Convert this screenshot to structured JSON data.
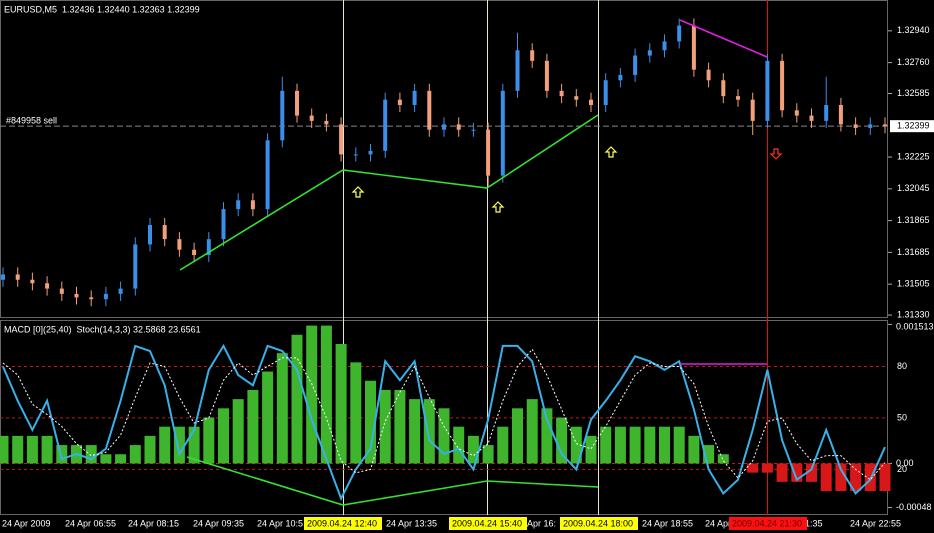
{
  "window": {
    "symbol_line": "EURUSD,M5  1.32436 1.32440 1.32363 1.32399",
    "order_label": "#849958 sell",
    "current_price": "1.32399",
    "indicator_line": "MACD [0](25,40)  Stoch(14,3,3) 32.5868 23.6561",
    "time_labels": [
      "24 Apr 2009",
      "24 Apr 06:55",
      "24 Apr 08:15",
      "24 Apr 09:35",
      "24 Apr 10:5",
      "24 Apr 13:35",
      "Apr 16:",
      "24 Apr 18:55",
      "24 Apr 2",
      "1:35",
      "24 Apr 22:55"
    ],
    "cursor_labels": [
      "2009.04.24 12:40",
      "2009.04.24 15:40",
      "2009.04.24 18:00",
      "2009.04.24 21:30"
    ]
  },
  "chart_data": [
    {
      "type": "candlestick",
      "up_color": "#3b8fe8",
      "down_color": "#f2a07b",
      "open": [
        1.3153,
        1.3156,
        1.3153,
        1.3151,
        1.3148,
        1.3145,
        1.3143,
        1.3142,
        1.3145,
        1.3148,
        1.3173,
        1.3184,
        1.3176,
        1.317,
        1.3167,
        1.3176,
        1.3193,
        1.3198,
        1.3193,
        1.3232,
        1.326,
        1.3246,
        1.3243,
        1.3241,
        1.3224,
        1.3224,
        1.3226,
        1.3255,
        1.3252,
        1.326,
        1.3238,
        1.3241,
        1.3238,
        1.3238,
        1.3212,
        1.326,
        1.3283,
        1.3277,
        1.326,
        1.3257,
        1.3255,
        1.3252,
        1.3266,
        1.3269,
        1.328,
        1.3283,
        1.3288,
        1.3297,
        1.3272,
        1.3266,
        1.3257,
        1.3255,
        1.3243,
        1.3277,
        1.3249,
        1.3246,
        1.3243,
        1.3252,
        1.3241,
        1.3239,
        1.3241
      ],
      "high": [
        1.316,
        1.316,
        1.3157,
        1.3155,
        1.3152,
        1.3149,
        1.3147,
        1.3149,
        1.3152,
        1.3177,
        1.3188,
        1.3188,
        1.318,
        1.3174,
        1.318,
        1.3197,
        1.3202,
        1.3202,
        1.3236,
        1.3268,
        1.3264,
        1.325,
        1.3247,
        1.3245,
        1.3228,
        1.323,
        1.3259,
        1.3259,
        1.3264,
        1.3264,
        1.3245,
        1.3245,
        1.3242,
        1.3242,
        1.3264,
        1.3293,
        1.3287,
        1.3281,
        1.3264,
        1.3261,
        1.3259,
        1.327,
        1.3273,
        1.3284,
        1.3287,
        1.3292,
        1.3301,
        1.3301,
        1.3276,
        1.327,
        1.3261,
        1.3259,
        1.3281,
        1.3281,
        1.3253,
        1.325,
        1.3268,
        1.3256,
        1.3245,
        1.3245,
        1.3245
      ],
      "low": [
        1.3149,
        1.3149,
        1.3147,
        1.3144,
        1.3141,
        1.3139,
        1.3138,
        1.3138,
        1.3141,
        1.3144,
        1.3169,
        1.3172,
        1.3166,
        1.3163,
        1.3163,
        1.3172,
        1.3189,
        1.3189,
        1.3189,
        1.3228,
        1.3242,
        1.3239,
        1.3237,
        1.322,
        1.322,
        1.322,
        1.3222,
        1.3248,
        1.3248,
        1.3234,
        1.3234,
        1.3234,
        1.3234,
        1.3206,
        1.3208,
        1.3256,
        1.3273,
        1.3256,
        1.3253,
        1.3251,
        1.3248,
        1.3248,
        1.3262,
        1.3265,
        1.3276,
        1.3279,
        1.3284,
        1.3268,
        1.3262,
        1.3253,
        1.3251,
        1.3235,
        1.3239,
        1.3245,
        1.3242,
        1.3239,
        1.3239,
        1.3237,
        1.3235,
        1.3235,
        1.3236
      ],
      "close": [
        1.3156,
        1.3153,
        1.3151,
        1.3148,
        1.3145,
        1.3143,
        1.3142,
        1.3145,
        1.3148,
        1.3173,
        1.3184,
        1.3176,
        1.317,
        1.3167,
        1.3176,
        1.3193,
        1.3198,
        1.3193,
        1.3232,
        1.326,
        1.3246,
        1.3243,
        1.3241,
        1.3224,
        1.3224,
        1.3226,
        1.3255,
        1.3252,
        1.326,
        1.3238,
        1.3241,
        1.3238,
        1.3238,
        1.3212,
        1.326,
        1.3283,
        1.3277,
        1.326,
        1.3257,
        1.3255,
        1.3252,
        1.3266,
        1.3269,
        1.328,
        1.3283,
        1.3288,
        1.3297,
        1.3272,
        1.3266,
        1.3257,
        1.3255,
        1.3243,
        1.3277,
        1.3249,
        1.3246,
        1.3243,
        1.3252,
        1.3241,
        1.3239,
        1.3241,
        1.324
      ],
      "ylim": [
        1.31319,
        1.33109
      ],
      "yticks": [
        {
          "value": 1.3294,
          "label": "1.32940"
        },
        {
          "value": 1.3276,
          "label": "1.32760"
        },
        {
          "value": 1.32585,
          "label": "1.32585"
        },
        {
          "value": 1.32225,
          "label": "1.32225"
        },
        {
          "value": 1.32045,
          "label": "1.32045"
        },
        {
          "value": 1.31865,
          "label": "1.31865"
        },
        {
          "value": 1.31685,
          "label": "1.31685"
        },
        {
          "value": 1.31505,
          "label": "1.31505"
        },
        {
          "value": 1.3133,
          "label": "1.31330"
        }
      ]
    },
    {
      "type": "macd_stoch",
      "series": [
        {
          "color": "#3fb52e",
          "negative_color": "#d81818",
          "axis": "y2",
          "values": [
            0.0003,
            0.0003,
            0.0003,
            0.0003,
            0.0002,
            0.0002,
            0.0002,
            0.0001,
            0.0001,
            0.0002,
            0.0003,
            0.0004,
            0.0004,
            0.0004,
            0.0005,
            0.0006,
            0.0007,
            0.0008,
            0.001,
            0.0012,
            0.0014,
            0.0015,
            0.0015,
            0.0013,
            0.0011,
            0.0009,
            0.0008,
            0.0008,
            0.0007,
            0.0007,
            0.0006,
            0.0004,
            0.0003,
            0.0002,
            0.0004,
            0.0006,
            0.0007,
            0.0006,
            0.0005,
            0.0004,
            0.0003,
            0.0004,
            0.0004,
            0.0004,
            0.0004,
            0.0004,
            0.0004,
            0.0003,
            0.0002,
            0.0001,
            0.0,
            -0.0001,
            -0.0001,
            -0.0002,
            -0.0002,
            -0.0002,
            -0.0003,
            -0.0003,
            -0.0003,
            -0.0003,
            -0.0003
          ]
        },
        {
          "color": "#38b0e8",
          "values": [
            80,
            60,
            43,
            60,
            26,
            29,
            26,
            32,
            60,
            92,
            89,
            69,
            29,
            43,
            78,
            92,
            75,
            69,
            92,
            89,
            78,
            49,
            26,
            3,
            20,
            32,
            83,
            72,
            83,
            37,
            29,
            32,
            20,
            49,
            92,
            92,
            83,
            49,
            29,
            20,
            49,
            60,
            72,
            86,
            83,
            78,
            83,
            55,
            20,
            6,
            14,
            43,
            78,
            37,
            14,
            20,
            43,
            20,
            6,
            14,
            33
          ]
        },
        {
          "color": "#ffffff",
          "values": [
            82,
            75,
            58,
            52,
            45,
            35,
            28,
            30,
            40,
            62,
            82,
            80,
            62,
            47,
            50,
            72,
            82,
            75,
            80,
            85,
            85,
            70,
            50,
            25,
            18,
            20,
            48,
            65,
            80,
            62,
            45,
            32,
            28,
            35,
            60,
            80,
            90,
            75,
            55,
            35,
            32,
            45,
            60,
            75,
            82,
            80,
            80,
            70,
            45,
            25,
            15,
            25,
            48,
            50,
            35,
            25,
            28,
            28,
            20,
            14,
            24
          ]
        }
      ],
      "ylim": [
        -6,
        106.5
      ],
      "yticks": [
        80,
        50,
        20
      ],
      "y2lim": [
        -0.00055,
        0.00155
      ],
      "y2ticks": [
        0.001513,
        {
          "value": 0,
          "label": "0.00"
        },
        -0.00048
      ]
    }
  ]
}
